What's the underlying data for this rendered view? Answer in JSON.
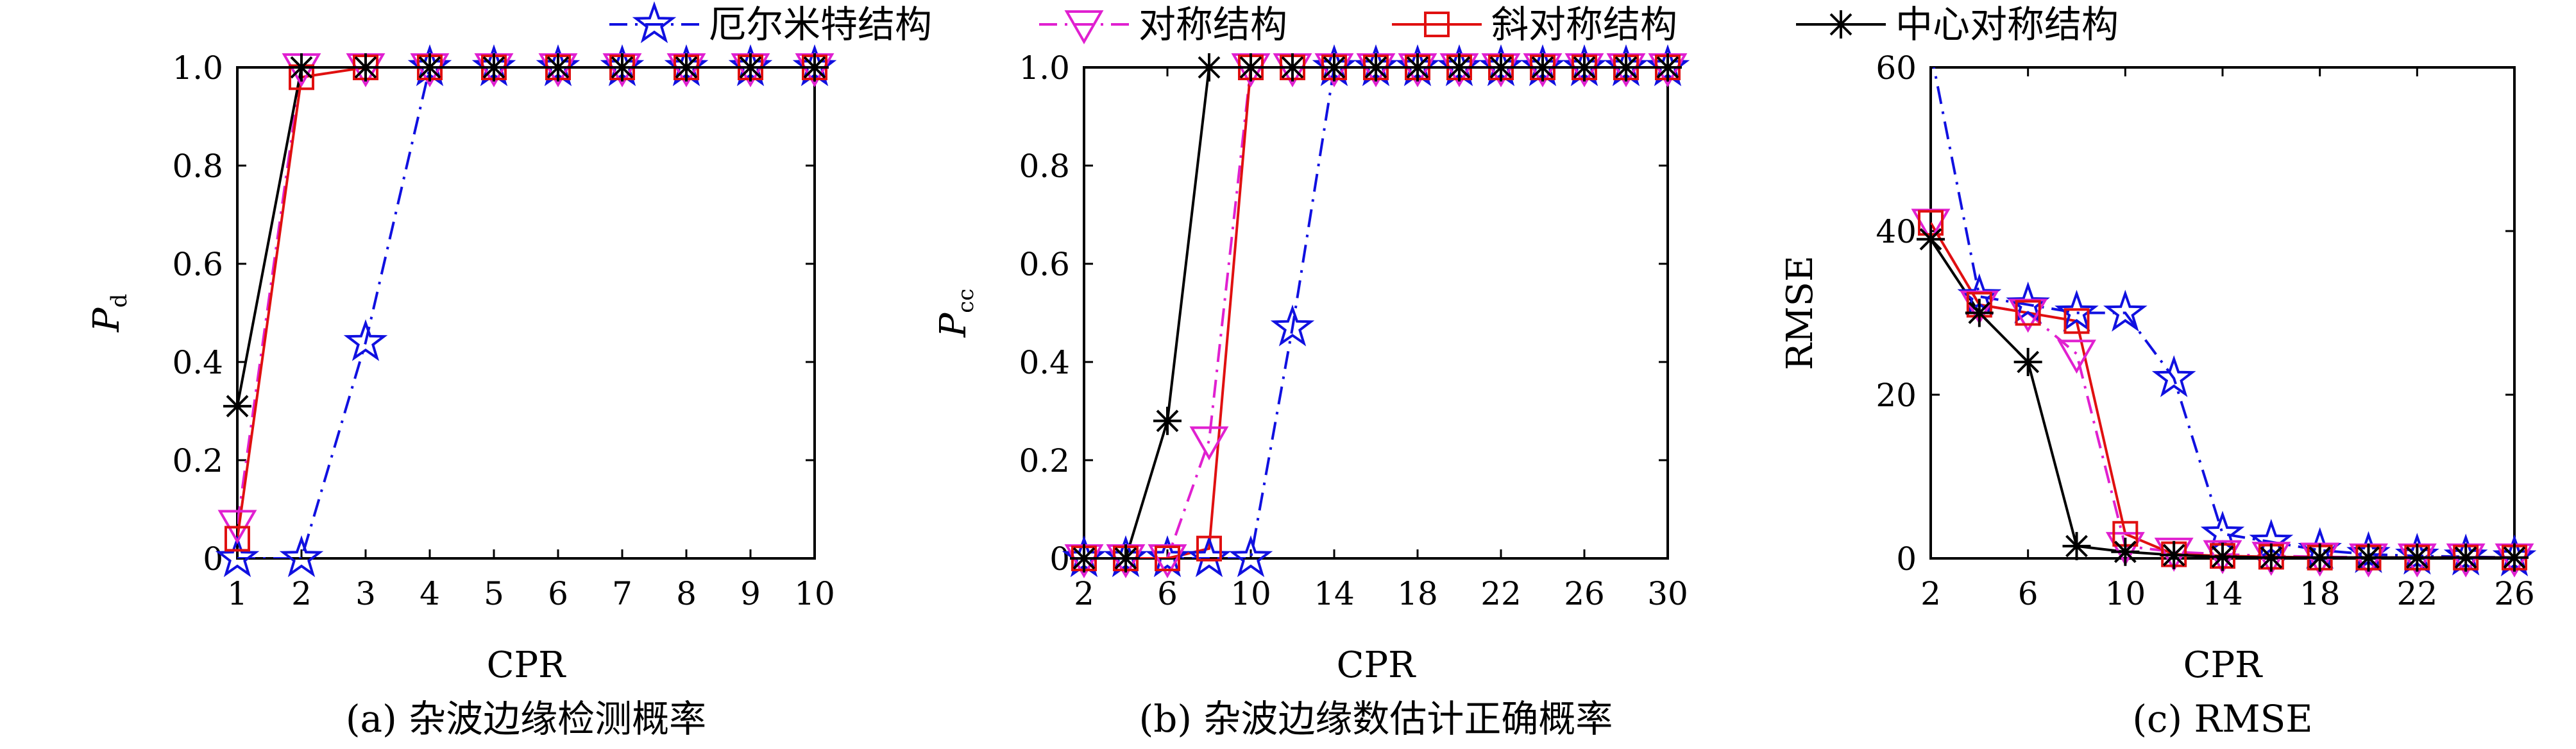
{
  "legend": [
    {
      "label": "厄尔米特结构",
      "color": "#1010e0",
      "marker": "star",
      "dash": "dashdot"
    },
    {
      "label": "对称结构",
      "color": "#e020d0",
      "marker": "triangle-down",
      "dash": "dashdot"
    },
    {
      "label": "斜对称结构",
      "color": "#e01010",
      "marker": "square",
      "dash": "solid"
    },
    {
      "label": "中心对称结构",
      "color": "#000000",
      "marker": "asterisk",
      "dash": "solid"
    }
  ],
  "chart_data": [
    {
      "type": "line",
      "caption": "(a) 杂波边缘检测概率",
      "xlabel": "CPR",
      "ylabel": "P",
      "ylabel_sub": "d",
      "xlim": [
        1,
        10
      ],
      "ylim": [
        0,
        1
      ],
      "xticks": [
        "1",
        "2",
        "3",
        "4",
        "5",
        "6",
        "7",
        "8",
        "9",
        "10"
      ],
      "yticks": [
        "0",
        "0.2",
        "0.4",
        "0.6",
        "0.8",
        "1.0"
      ],
      "grid": false,
      "series": [
        {
          "name": "厄尔米特结构",
          "x": [
            1,
            2,
            3,
            4,
            5,
            6,
            7,
            8,
            9,
            10
          ],
          "y": [
            0,
            0,
            0.44,
            1,
            1,
            1,
            1,
            1,
            1,
            1
          ]
        },
        {
          "name": "对称结构",
          "x": [
            1,
            2,
            3,
            4,
            5,
            6,
            7,
            8,
            9,
            10
          ],
          "y": [
            0.07,
            1,
            1,
            1,
            1,
            1,
            1,
            1,
            1,
            1
          ]
        },
        {
          "name": "斜对称结构",
          "x": [
            1,
            2,
            3,
            4,
            5,
            6,
            7,
            8,
            9,
            10
          ],
          "y": [
            0.04,
            0.98,
            1,
            1,
            1,
            1,
            1,
            1,
            1,
            1
          ]
        },
        {
          "name": "中心对称结构",
          "x": [
            1,
            2,
            3,
            4,
            5,
            6,
            7,
            8,
            9,
            10
          ],
          "y": [
            0.31,
            1,
            1,
            1,
            1,
            1,
            1,
            1,
            1,
            1
          ]
        }
      ]
    },
    {
      "type": "line",
      "caption": "(b) 杂波边缘数估计正确概率",
      "xlabel": "CPR",
      "ylabel": "P",
      "ylabel_sub": "cc",
      "xlim": [
        2,
        30
      ],
      "ylim": [
        0,
        1
      ],
      "xticks": [
        "2",
        "6",
        "10",
        "14",
        "18",
        "22",
        "26",
        "30"
      ],
      "yticks": [
        "0",
        "0.2",
        "0.4",
        "0.6",
        "0.8",
        "1.0"
      ],
      "grid": false,
      "series": [
        {
          "name": "厄尔米特结构",
          "x": [
            2,
            4,
            6,
            8,
            10,
            12,
            14,
            16,
            18,
            20,
            22,
            24,
            26,
            28,
            30
          ],
          "y": [
            0,
            0,
            0,
            0,
            0,
            0.47,
            1,
            1,
            1,
            1,
            1,
            1,
            1,
            1,
            1
          ]
        },
        {
          "name": "对称结构",
          "x": [
            2,
            4,
            6,
            8,
            10,
            12,
            14,
            16,
            18,
            20,
            22,
            24,
            26,
            28,
            30
          ],
          "y": [
            0,
            0,
            0,
            0.24,
            1,
            1,
            1,
            1,
            1,
            1,
            1,
            1,
            1,
            1,
            1
          ]
        },
        {
          "name": "斜对称结构",
          "x": [
            2,
            4,
            6,
            8,
            10,
            12,
            14,
            16,
            18,
            20,
            22,
            24,
            26,
            28,
            30
          ],
          "y": [
            0,
            0,
            0,
            0.02,
            1,
            1,
            1,
            1,
            1,
            1,
            1,
            1,
            1,
            1,
            1
          ]
        },
        {
          "name": "中心对称结构",
          "x": [
            2,
            4,
            6,
            8,
            10,
            12,
            14,
            16,
            18,
            20,
            22,
            24,
            26,
            28,
            30
          ],
          "y": [
            0,
            0,
            0.28,
            1,
            1,
            1,
            1,
            1,
            1,
            1,
            1,
            1,
            1,
            1,
            1
          ]
        }
      ]
    },
    {
      "type": "line",
      "caption": "(c) RMSE",
      "xlabel": "CPR",
      "ylabel": "RMSE",
      "ylabel_sub": "",
      "xlim": [
        2,
        26
      ],
      "ylim": [
        0,
        60
      ],
      "xticks": [
        "2",
        "6",
        "10",
        "14",
        "18",
        "22",
        "26"
      ],
      "yticks": [
        "0",
        "20",
        "40",
        "60"
      ],
      "grid": false,
      "series": [
        {
          "name": "厄尔米特结构",
          "x": [
            2,
            4,
            6,
            8,
            10,
            12,
            14,
            16,
            18,
            20,
            22,
            24,
            26
          ],
          "y": [
            62,
            32,
            31,
            30,
            30,
            22,
            3,
            2,
            1,
            0.5,
            0.3,
            0.2,
            0.1
          ]
        },
        {
          "name": "对称结构",
          "x": [
            2,
            4,
            6,
            8,
            10,
            12,
            14,
            16,
            18,
            20,
            22,
            24,
            26
          ],
          "y": [
            41,
            31,
            30,
            25,
            1.5,
            0.8,
            0.5,
            0.3,
            0.2,
            0.1,
            0.1,
            0.1,
            0.1
          ]
        },
        {
          "name": "斜对称结构",
          "x": [
            2,
            4,
            6,
            8,
            10,
            12,
            14,
            16,
            18,
            20,
            22,
            24,
            26
          ],
          "y": [
            41,
            31,
            30,
            29,
            3,
            0.5,
            0.3,
            0.2,
            0.1,
            0.1,
            0.1,
            0.1,
            0.1
          ]
        },
        {
          "name": "中心对称结构",
          "x": [
            2,
            4,
            6,
            8,
            10,
            12,
            14,
            16,
            18,
            20,
            22,
            24,
            26
          ],
          "y": [
            39,
            30,
            24,
            1.5,
            0.8,
            0.4,
            0.2,
            0.1,
            0.1,
            0.1,
            0.1,
            0.1,
            0.1
          ]
        }
      ]
    }
  ]
}
